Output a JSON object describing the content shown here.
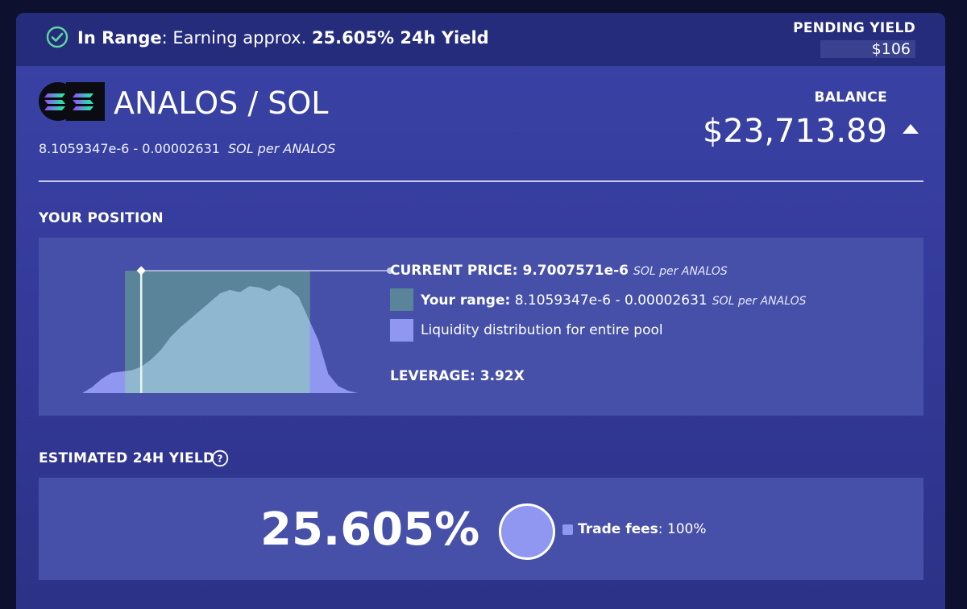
{
  "status": {
    "range_label": "In Range",
    "range_text": ": Earning approx. ",
    "yield_value": "25.605%",
    "yield_suffix": " 24h Yield",
    "pending_label": "PENDING YIELD",
    "pending_value": "$106"
  },
  "pair": {
    "name": "ANALOS / SOL",
    "range": "8.1059347e-6 - 0.00002631",
    "unit": "SOL per ANALOS",
    "logo_icon": "analos-sol-token-pair-icon"
  },
  "balance": {
    "label": "BALANCE",
    "value": "$23,713.89",
    "toggle_icon": "caret-up-icon"
  },
  "position": {
    "title": "YOUR POSITION",
    "current_price_label": "CURRENT PRICE: ",
    "current_price_value": "9.7007571e-6",
    "current_price_unit": "SOL per ANALOS",
    "range_label": "Your range:",
    "range_value": "8.1059347e-6 - 0.00002631",
    "range_unit": "SOL per ANALOS",
    "liquidity_label": "Liquidity distribution for entire pool",
    "leverage_label": "LEVERAGE: ",
    "leverage_value": "3.92X"
  },
  "estimated": {
    "title": "ESTIMATED 24H YIELD",
    "help_icon": "question-circle-icon",
    "value": "25.605%",
    "fees_label": "Trade fees",
    "fees_value": ": 100%"
  },
  "colors": {
    "card": "#3a43a6",
    "topbar": "#252c7c",
    "panel": "#4650a8",
    "range_fill": "#5a8499",
    "liquidity_fill": "#8f97f0",
    "range_overlay": "#8fb8d0",
    "check": "#5fd6a0"
  },
  "chart_data": {
    "type": "area",
    "current_price": 9.7007571e-06,
    "range": [
      8.1059347e-06,
      2.631e-05
    ],
    "liquidity_profile": [
      0,
      0.05,
      0.12,
      0.17,
      0.18,
      0.19,
      0.22,
      0.28,
      0.36,
      0.47,
      0.55,
      0.62,
      0.69,
      0.76,
      0.83,
      0.86,
      0.84,
      0.89,
      0.88,
      0.85,
      0.9,
      0.87,
      0.8,
      0.62,
      0.44,
      0.16,
      0.06,
      0.02,
      0
    ]
  }
}
